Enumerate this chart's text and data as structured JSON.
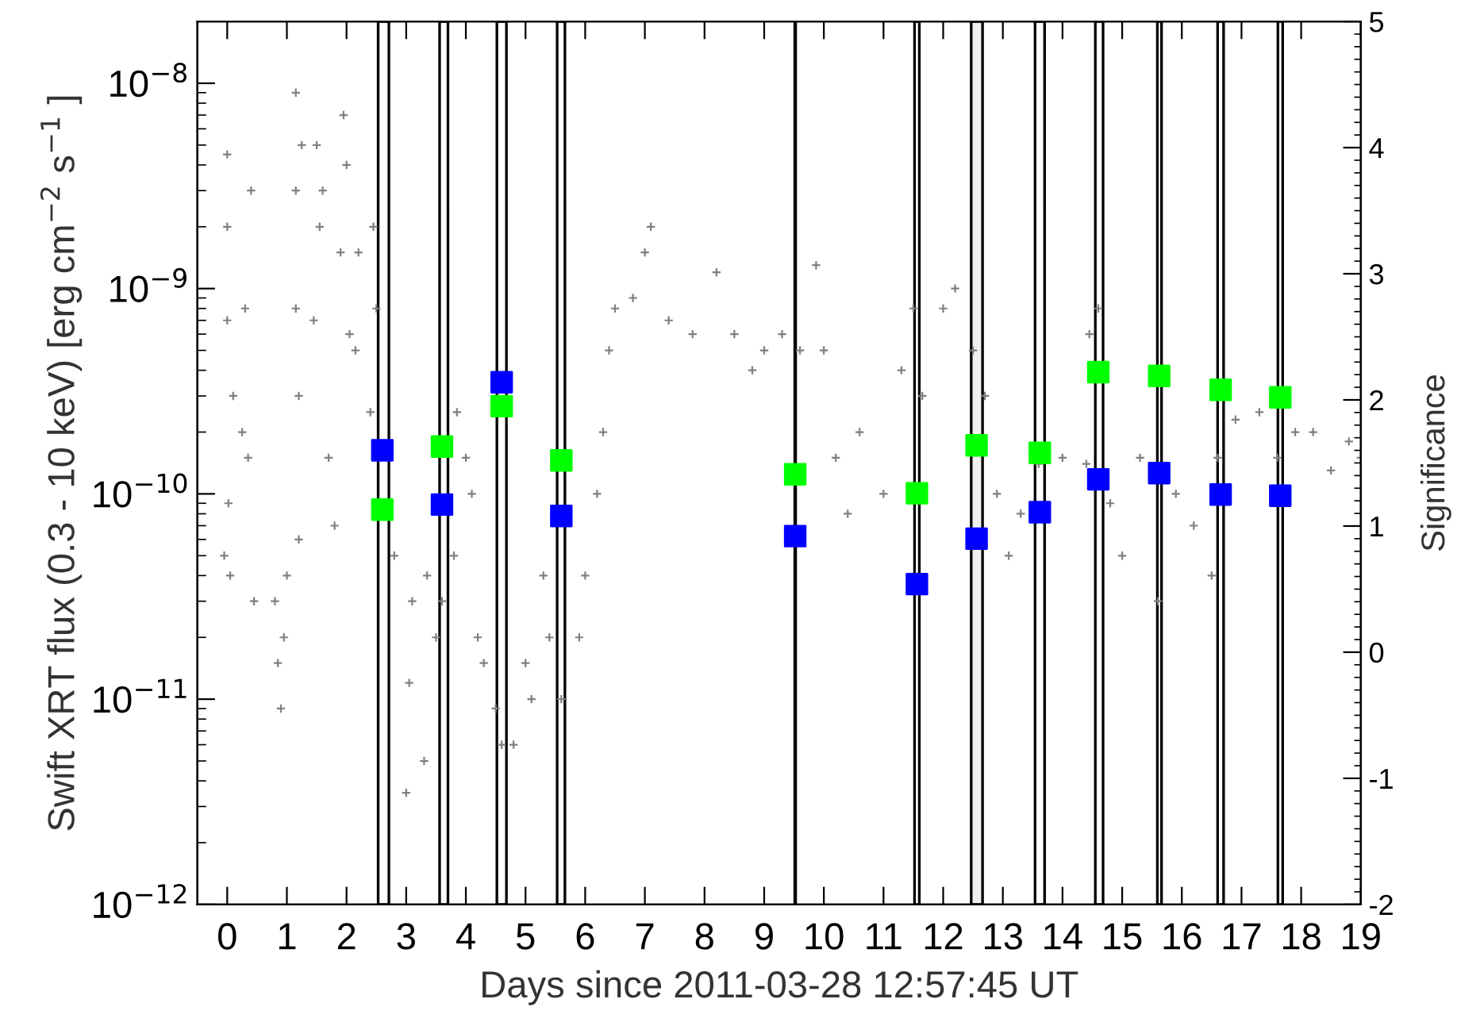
{
  "chart_data": {
    "type": "scatter",
    "xlabel": "Days since 2011-03-28 12:57:45 UT",
    "ylabel": "Swift XRT flux (0.3 - 10 keV) [erg cm$^{−2}$ s$^{−1}$ ]",
    "y2label": "Significance",
    "xlim": [
      -0.5,
      19
    ],
    "xticks": [
      0,
      1,
      2,
      3,
      4,
      5,
      6,
      7,
      8,
      9,
      10,
      11,
      12,
      13,
      14,
      15,
      16,
      17,
      18,
      19
    ],
    "log": "y",
    "ylim": [
      1e-12,
      2e-08
    ],
    "yticks": [
      {
        "value": 1e-12,
        "label": "10$^{−12}$"
      },
      {
        "value": 1e-11,
        "label": "10$^{−11}$"
      },
      {
        "value": 1e-10,
        "label": "10$^{−10}$"
      },
      {
        "value": 1e-09,
        "label": "10$^{−9}$"
      },
      {
        "value": 1e-08,
        "label": "10$^{−8}$"
      }
    ],
    "y2lim": [
      -2,
      5
    ],
    "y2ticks": [
      -2,
      -1,
      0,
      1,
      2,
      3,
      4,
      5
    ],
    "grid": false,
    "series": [
      {
        "marker": "cross",
        "color": "#808080",
        "x": [
          0,
          0,
          0,
          0.02,
          -0.05,
          0.05,
          0.1,
          0.3,
          0.35,
          0.4,
          0.45,
          0.25,
          0.8,
          0.85,
          0.9,
          0.95,
          1.0,
          1.15,
          1.15,
          1.15,
          1.2,
          1.25,
          1.2,
          1.45,
          1.5,
          1.55,
          1.6,
          1.7,
          1.8,
          1.9,
          1.95,
          2.0,
          2.05,
          2.15,
          2.2,
          2.4,
          2.45,
          2.5,
          2.7,
          2.8,
          3.0,
          3.05,
          3.1,
          3.3,
          3.35,
          3.5,
          3.6,
          3.8,
          3.85,
          4.0,
          4.1,
          4.2,
          4.3,
          4.5,
          4.6,
          4.8,
          5.0,
          5.1,
          5.3,
          5.4,
          5.6,
          5.9,
          6.0,
          6.2,
          6.3,
          6.4,
          6.5,
          6.8,
          7.0,
          7.1,
          7.4,
          7.8,
          8.2,
          8.5,
          8.8,
          9.0,
          9.3,
          9.6,
          9.87,
          10.0,
          10.2,
          10.4,
          10.6,
          11.0,
          11.3,
          11.5,
          11.65,
          12.0,
          12.2,
          12.5,
          12.7,
          12.9,
          13.1,
          13.3,
          13.6,
          14.0,
          14.4,
          14.45,
          14.6,
          14.8,
          15.0,
          15.3,
          15.6,
          15.9,
          16.2,
          16.5,
          16.6,
          16.9,
          17.3,
          17.6,
          17.9,
          18.2,
          18.5,
          18.8,
          19.0
        ],
        "values": [
          7e-10,
          2e-09,
          4.5e-09,
          9e-11,
          5e-11,
          4e-11,
          3e-10,
          8e-10,
          1.5e-10,
          3e-09,
          3e-11,
          2e-10,
          3e-11,
          1.5e-11,
          9e-12,
          2e-11,
          4e-11,
          8e-10,
          3e-09,
          9e-09,
          6e-11,
          5e-09,
          3e-10,
          7e-10,
          5e-09,
          2e-09,
          3e-09,
          1.5e-10,
          7e-11,
          1.5e-09,
          7e-09,
          4e-09,
          6e-10,
          5e-10,
          1.5e-09,
          2.5e-10,
          2e-09,
          8e-10,
          1.5e-10,
          5e-11,
          3.5e-12,
          1.2e-11,
          3e-11,
          5e-12,
          4e-11,
          2e-11,
          3e-11,
          5e-11,
          2.5e-10,
          1.5e-10,
          1e-10,
          2e-11,
          1.5e-11,
          9e-12,
          6e-12,
          6e-12,
          1.5e-11,
          1e-11,
          4e-11,
          2e-11,
          1e-11,
          2e-11,
          4e-11,
          1e-10,
          2e-10,
          5e-10,
          8e-10,
          9e-10,
          1.5e-09,
          2e-09,
          7e-10,
          6e-10,
          1.2e-09,
          6e-10,
          4e-10,
          5e-10,
          6e-10,
          5e-10,
          1.3e-09,
          5e-10,
          1.5e-10,
          8e-11,
          2e-10,
          1e-10,
          4e-10,
          8e-10,
          3e-10,
          8e-10,
          1e-09,
          5e-10,
          3e-10,
          1e-10,
          5e-11,
          8e-11,
          1.4e-10,
          1.5e-10,
          1.4e-10,
          6e-10,
          8e-10,
          9e-11,
          5e-11,
          1.5e-10,
          3e-11,
          1e-10,
          7e-11,
          4e-11,
          1.5e-10,
          2.3e-10,
          2.5e-10,
          1.5e-10,
          2e-10,
          2e-10,
          1.3e-10,
          1.8e-10,
          1.5e-10
        ]
      },
      {
        "marker": "square",
        "color": "#00ff00",
        "axis": "y2",
        "x": [
          2.6,
          3.6,
          4.6,
          5.6,
          9.52,
          11.56,
          12.56,
          13.62,
          14.6,
          15.62,
          16.65,
          17.65
        ],
        "values": [
          1.13,
          1.63,
          1.95,
          1.52,
          1.41,
          1.26,
          1.64,
          1.58,
          2.22,
          2.19,
          2.08,
          2.02
        ]
      },
      {
        "marker": "square",
        "color": "#0000ff",
        "axis": "y2",
        "x": [
          2.6,
          3.6,
          4.6,
          5.6,
          9.52,
          11.56,
          12.56,
          13.62,
          14.6,
          15.62,
          16.65,
          17.65
        ],
        "values": [
          1.6,
          1.17,
          2.14,
          1.08,
          0.92,
          0.54,
          0.9,
          1.11,
          1.37,
          1.42,
          1.25,
          1.24
        ]
      }
    ],
    "bands": [
      {
        "axis": "x",
        "from": 2.53,
        "to": 2.71,
        "color": "#ffffff"
      },
      {
        "axis": "x",
        "from": 3.56,
        "to": 3.7,
        "color": "#ffffff"
      },
      {
        "axis": "x",
        "from": 4.52,
        "to": 4.68,
        "color": "#ffffff"
      },
      {
        "axis": "x",
        "from": 5.53,
        "to": 5.66,
        "color": "#ffffff"
      },
      {
        "axis": "x",
        "from": 11.52,
        "to": 11.6,
        "color": "#ffffff"
      },
      {
        "axis": "x",
        "from": 12.47,
        "to": 12.66,
        "color": "#f0f0f0"
      },
      {
        "axis": "x",
        "from": 13.54,
        "to": 13.7,
        "color": "#ffffff"
      },
      {
        "axis": "x",
        "from": 14.55,
        "to": 14.68,
        "color": "#ffffff"
      },
      {
        "axis": "x",
        "from": 15.59,
        "to": 15.66,
        "color": "#ffffff"
      },
      {
        "axis": "x",
        "from": 16.6,
        "to": 16.7,
        "color": "#ffffff"
      },
      {
        "axis": "x",
        "from": 17.61,
        "to": 17.69,
        "color": "#ffffff"
      }
    ],
    "ref_lines": [
      {
        "axis": "x",
        "value": 9.52,
        "color": "#000000"
      }
    ]
  }
}
